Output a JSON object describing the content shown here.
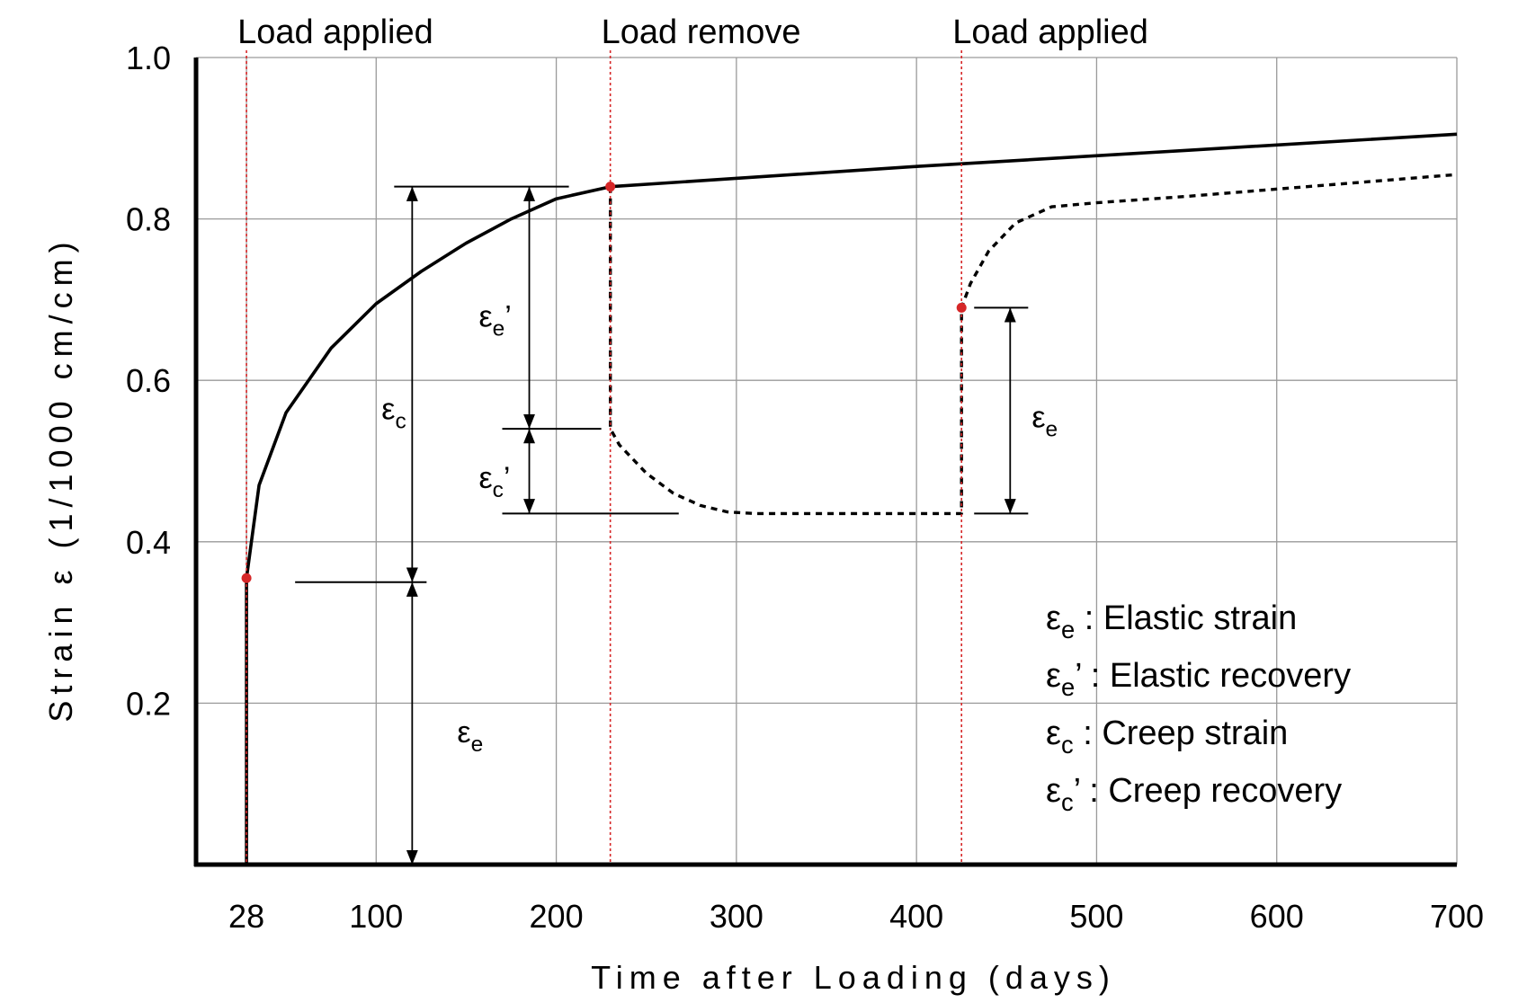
{
  "chart_data": {
    "type": "line",
    "title": "",
    "xlabel": "Time after Loading (days)",
    "ylabel": "Strain ε (1/1000 cm/cm)",
    "xlim": [
      0,
      700
    ],
    "ylim": [
      0,
      1.0
    ],
    "x_ticks": [
      28,
      100,
      200,
      300,
      400,
      500,
      600,
      700
    ],
    "x_tick_labels": [
      "28",
      "100",
      "200",
      "300",
      "400",
      "500",
      "600",
      "700"
    ],
    "y_ticks": [
      0.2,
      0.4,
      0.6,
      0.8,
      1.0
    ],
    "y_tick_labels": [
      "0.2",
      "0.4",
      "0.6",
      "0.8",
      "1.0"
    ],
    "grid": true,
    "series": [
      {
        "style": "solid",
        "x": [
          28,
          28,
          35,
          50,
          75,
          100,
          125,
          150,
          175,
          200,
          230,
          400,
          550,
          700
        ],
        "y": [
          0,
          0.355,
          0.47,
          0.56,
          0.64,
          0.695,
          0.735,
          0.77,
          0.8,
          0.825,
          0.84,
          0.865,
          0.885,
          0.905
        ]
      },
      {
        "style": "dotted",
        "x": [
          230,
          230,
          235,
          250,
          265,
          280,
          295,
          310,
          400,
          425,
          425,
          430,
          440,
          455,
          475,
          500,
          550,
          700
        ],
        "y": [
          0.84,
          0.54,
          0.52,
          0.485,
          0.46,
          0.445,
          0.437,
          0.435,
          0.435,
          0.435,
          0.69,
          0.72,
          0.76,
          0.795,
          0.815,
          0.82,
          0.828,
          0.855
        ]
      }
    ],
    "events": [
      {
        "label": "Load applied",
        "x": 28
      },
      {
        "label": "Load remove",
        "x": 230
      },
      {
        "label": "Load applied",
        "x": 425
      }
    ],
    "event_points": [
      {
        "x": 28,
        "y": 0.355
      },
      {
        "x": 230,
        "y": 0.84
      },
      {
        "x": 425,
        "y": 0.69
      }
    ],
    "dimensions": [
      {
        "key": "ee1",
        "symbol": "ε",
        "sub": "e",
        "prime": "",
        "x": 120,
        "y_from": 0,
        "y_to": 0.35,
        "label_x": 145,
        "label_y": 0.165
      },
      {
        "key": "ec1",
        "symbol": "ε",
        "sub": "c",
        "prime": "",
        "x": 120,
        "y_from": 0.35,
        "y_to": 0.84,
        "label_x": 103,
        "label_y": 0.565
      },
      {
        "key": "ee2",
        "symbol": "ε",
        "sub": "e",
        "prime": "’",
        "x": 185,
        "y_from": 0.54,
        "y_to": 0.84,
        "label_x": 157,
        "label_y": 0.68
      },
      {
        "key": "ec2",
        "symbol": "ε",
        "sub": "c",
        "prime": "’",
        "x": 185,
        "y_from": 0.435,
        "y_to": 0.54,
        "label_x": 157,
        "label_y": 0.48
      },
      {
        "key": "ee3",
        "symbol": "ε",
        "sub": "e",
        "prime": "",
        "x": 452,
        "y_from": 0.435,
        "y_to": 0.69,
        "label_x": 464,
        "label_y": 0.555
      }
    ],
    "reference_lines": [
      {
        "y": 0.84,
        "x1": 110,
        "x2": 207
      },
      {
        "y": 0.35,
        "x1": 55,
        "x2": 128
      },
      {
        "y": 0.54,
        "x1": 170,
        "x2": 225
      },
      {
        "y": 0.435,
        "x1": 170,
        "x2": 268
      },
      {
        "y": 0.69,
        "x1": 432,
        "x2": 462
      },
      {
        "y": 0.435,
        "x1": 432,
        "x2": 462
      }
    ],
    "legend": {
      "placement": "bottom-right",
      "entries": [
        {
          "symbol": "ε",
          "sub": "e",
          "prime": "",
          "text": ": Elastic strain"
        },
        {
          "symbol": "ε",
          "sub": "e",
          "prime": "’",
          "text": ": Elastic recovery"
        },
        {
          "symbol": "ε",
          "sub": "c",
          "prime": "",
          "text": ": Creep strain"
        },
        {
          "symbol": "ε",
          "sub": "c",
          "prime": "’",
          "text": ": Creep recovery"
        }
      ]
    },
    "colors": {
      "curve": "#000000",
      "grid": "#9a9a9a",
      "marker": "#d62728",
      "event_line": "#d62728"
    }
  }
}
